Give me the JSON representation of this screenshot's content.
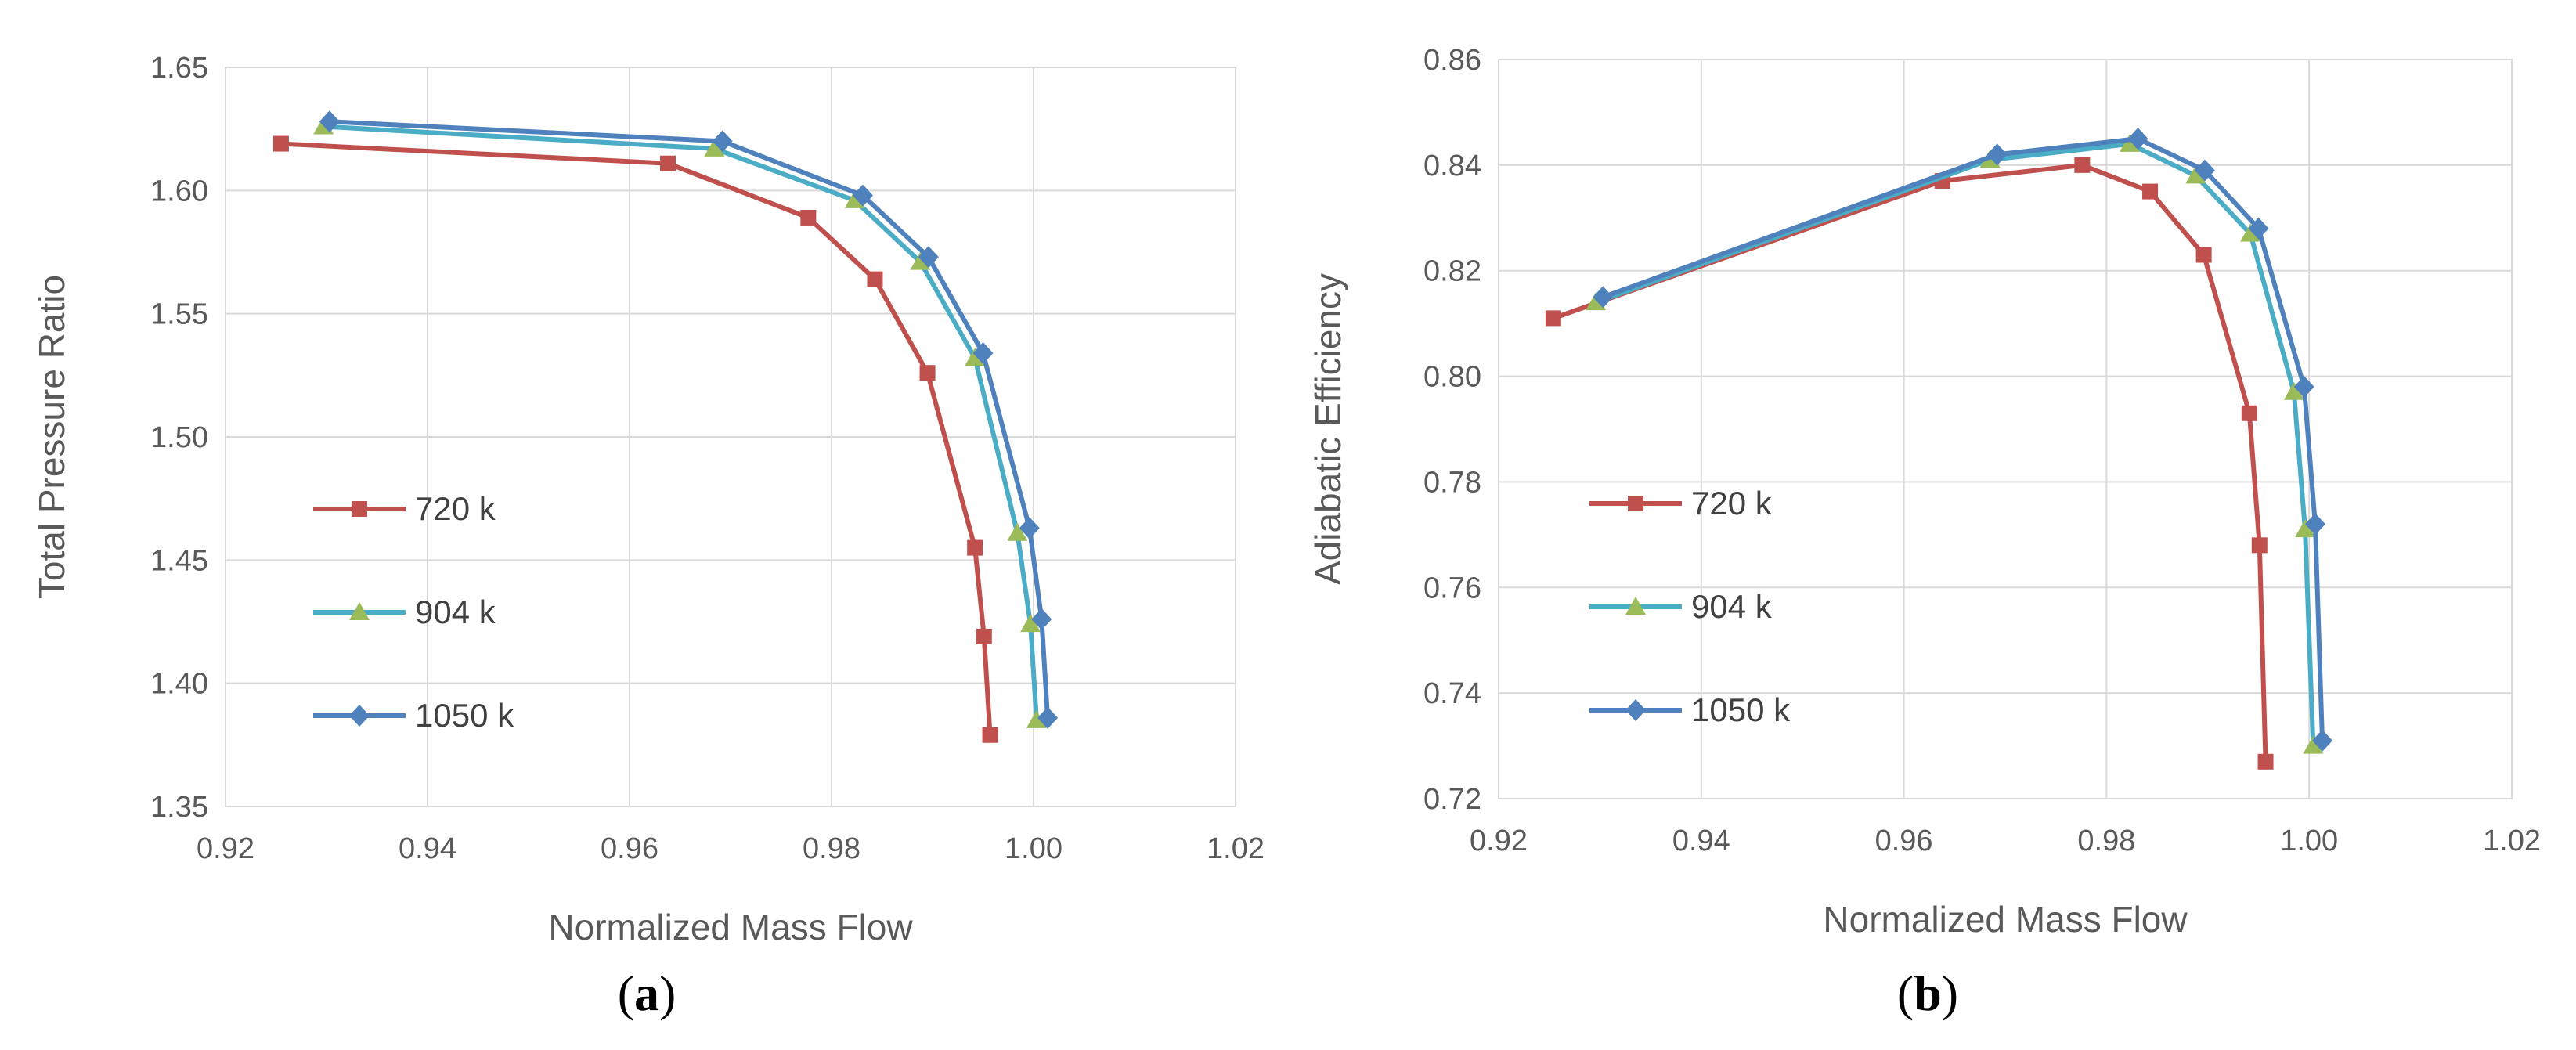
{
  "chart_data": [
    {
      "type": "line",
      "panel_label": "a",
      "xlabel": "Normalized Mass Flow",
      "ylabel": "Total Pressure Ratio",
      "xlim": [
        0.92,
        1.02
      ],
      "ylim": [
        1.35,
        1.65
      ],
      "xticks": [
        0.92,
        0.94,
        0.96,
        0.98,
        1.0,
        1.02
      ],
      "xtick_labels": [
        "0.92",
        "0.94",
        "0.96",
        "0.98",
        "1.00",
        "1.02"
      ],
      "yticks": [
        1.35,
        1.4,
        1.45,
        1.5,
        1.55,
        1.6,
        1.65
      ],
      "ytick_labels": [
        "1.35",
        "1.40",
        "1.45",
        "1.50",
        "1.55",
        "1.60",
        "1.65"
      ],
      "grid": true,
      "legend_position": "left-bottom",
      "series": [
        {
          "name": "720 k",
          "color": "#c0504d",
          "marker": "square",
          "x": [
            0.9255,
            0.9638,
            0.9777,
            0.9843,
            0.9895,
            0.9942,
            0.9951,
            0.9957
          ],
          "y": [
            1.619,
            1.611,
            1.589,
            1.564,
            1.526,
            1.455,
            1.419,
            1.379
          ]
        },
        {
          "name": "904 k",
          "color": "#4bacc6",
          "marker": "triangle",
          "marker_color": "#9bbb59",
          "x": [
            0.9297,
            0.9684,
            0.9823,
            0.9888,
            0.9942,
            0.9984,
            0.9997,
            1.0003
          ],
          "y": [
            1.626,
            1.617,
            1.596,
            1.571,
            1.532,
            1.461,
            1.424,
            1.385
          ]
        },
        {
          "name": "1050 k",
          "color": "#4f81bd",
          "marker": "diamond",
          "x": [
            0.9303,
            0.9692,
            0.9831,
            0.9896,
            0.995,
            0.9996,
            1.0008,
            1.0014
          ],
          "y": [
            1.628,
            1.62,
            1.598,
            1.573,
            1.534,
            1.463,
            1.426,
            1.386
          ]
        }
      ]
    },
    {
      "type": "line",
      "panel_label": "b",
      "xlabel": "Normalized Mass Flow",
      "ylabel": "Adiabatic Efficiency",
      "xlim": [
        0.92,
        1.02
      ],
      "ylim": [
        0.72,
        0.86
      ],
      "xticks": [
        0.92,
        0.94,
        0.96,
        0.98,
        1.0,
        1.02
      ],
      "xtick_labels": [
        "0.92",
        "0.94",
        "0.96",
        "0.98",
        "1.00",
        "1.02"
      ],
      "yticks": [
        0.72,
        0.74,
        0.76,
        0.78,
        0.8,
        0.82,
        0.84,
        0.86
      ],
      "ytick_labels": [
        "0.72",
        "0.74",
        "0.76",
        "0.78",
        "0.80",
        "0.82",
        "0.84",
        "0.86"
      ],
      "grid": true,
      "legend_position": "left-bottom",
      "series": [
        {
          "name": "720 k",
          "color": "#c0504d",
          "marker": "square",
          "x": [
            0.9254,
            0.9638,
            0.9776,
            0.9843,
            0.9896,
            0.9941,
            0.9951,
            0.9957
          ],
          "y": [
            0.811,
            0.837,
            0.84,
            0.835,
            0.823,
            0.793,
            0.768,
            0.727
          ]
        },
        {
          "name": "904 k",
          "color": "#4bacc6",
          "marker": "triangle",
          "marker_color": "#9bbb59",
          "x": [
            0.9296,
            0.9685,
            0.9823,
            0.9888,
            0.9942,
            0.9985,
            0.9996,
            1.0004
          ],
          "y": [
            0.814,
            0.841,
            0.844,
            0.838,
            0.827,
            0.797,
            0.771,
            0.73
          ]
        },
        {
          "name": "1050 k",
          "color": "#4f81bd",
          "marker": "diamond",
          "x": [
            0.9303,
            0.9692,
            0.9831,
            0.9897,
            0.995,
            0.9995,
            1.0006,
            1.0013
          ],
          "y": [
            0.815,
            0.842,
            0.845,
            0.839,
            0.828,
            0.798,
            0.772,
            0.731
          ]
        }
      ]
    }
  ]
}
